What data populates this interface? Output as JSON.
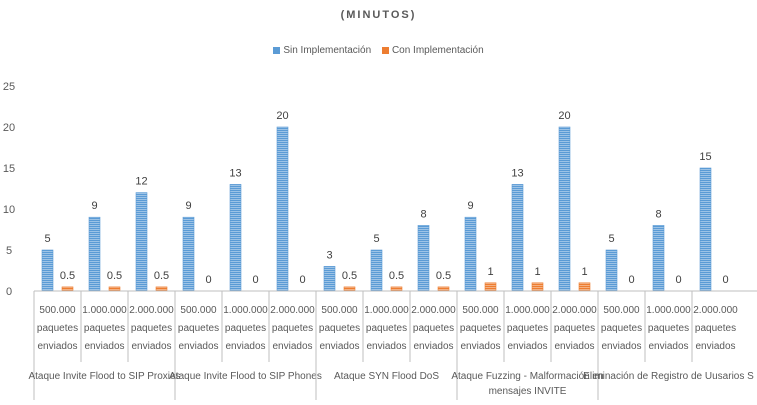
{
  "chart_data": {
    "type": "bar",
    "title": "(MINUTOS)",
    "xlabel": "",
    "ylabel": "",
    "ylim": [
      0,
      25
    ],
    "yticks": [
      0,
      5,
      10,
      15,
      20,
      25
    ],
    "grid": false,
    "legend_position": "top",
    "groups": [
      {
        "label": "Ataque Invite Flood to SIP Proxies",
        "categories": [
          "500.000 paquetes enviados",
          "1.000.000 paquetes enviados",
          "2.000.000 paquetes enviados"
        ]
      },
      {
        "label": "Ataque Invite Flood to SIP Phones",
        "categories": [
          "500.000 paquetes enviados",
          "1.000.000 paquetes enviados",
          "2.000.000 paquetes enviados"
        ]
      },
      {
        "label": "Ataque SYN Flood DoS",
        "categories": [
          "500.000 paquetes enviados",
          "1.000.000 paquetes enviados",
          "2.000.000 paquetes enviados"
        ]
      },
      {
        "label": "Ataque Fuzzing - Malformación en mensajes INVITE",
        "categories": [
          "500.000 paquetes enviados",
          "1.000.000 paquetes enviados",
          "2.000.000 paquetes enviados"
        ]
      },
      {
        "label": "Eliminación de Registro de Uusarios S",
        "categories": [
          "500.000 paquetes enviados",
          "1.000.000 paquetes enviados",
          "2.000.000 paquetes enviados"
        ]
      }
    ],
    "series": [
      {
        "name": "Sin Implementación",
        "color": "#5b9bd5",
        "values": [
          5,
          9,
          12,
          9,
          13,
          20,
          3,
          5,
          8,
          9,
          13,
          20,
          5,
          8,
          15
        ]
      },
      {
        "name": "Con Implementación",
        "color": "#ed7d31",
        "values": [
          0.5,
          0.5,
          0.5,
          0,
          0,
          0,
          0.5,
          0.5,
          0.5,
          1,
          1,
          1,
          0,
          0,
          0
        ]
      }
    ]
  }
}
